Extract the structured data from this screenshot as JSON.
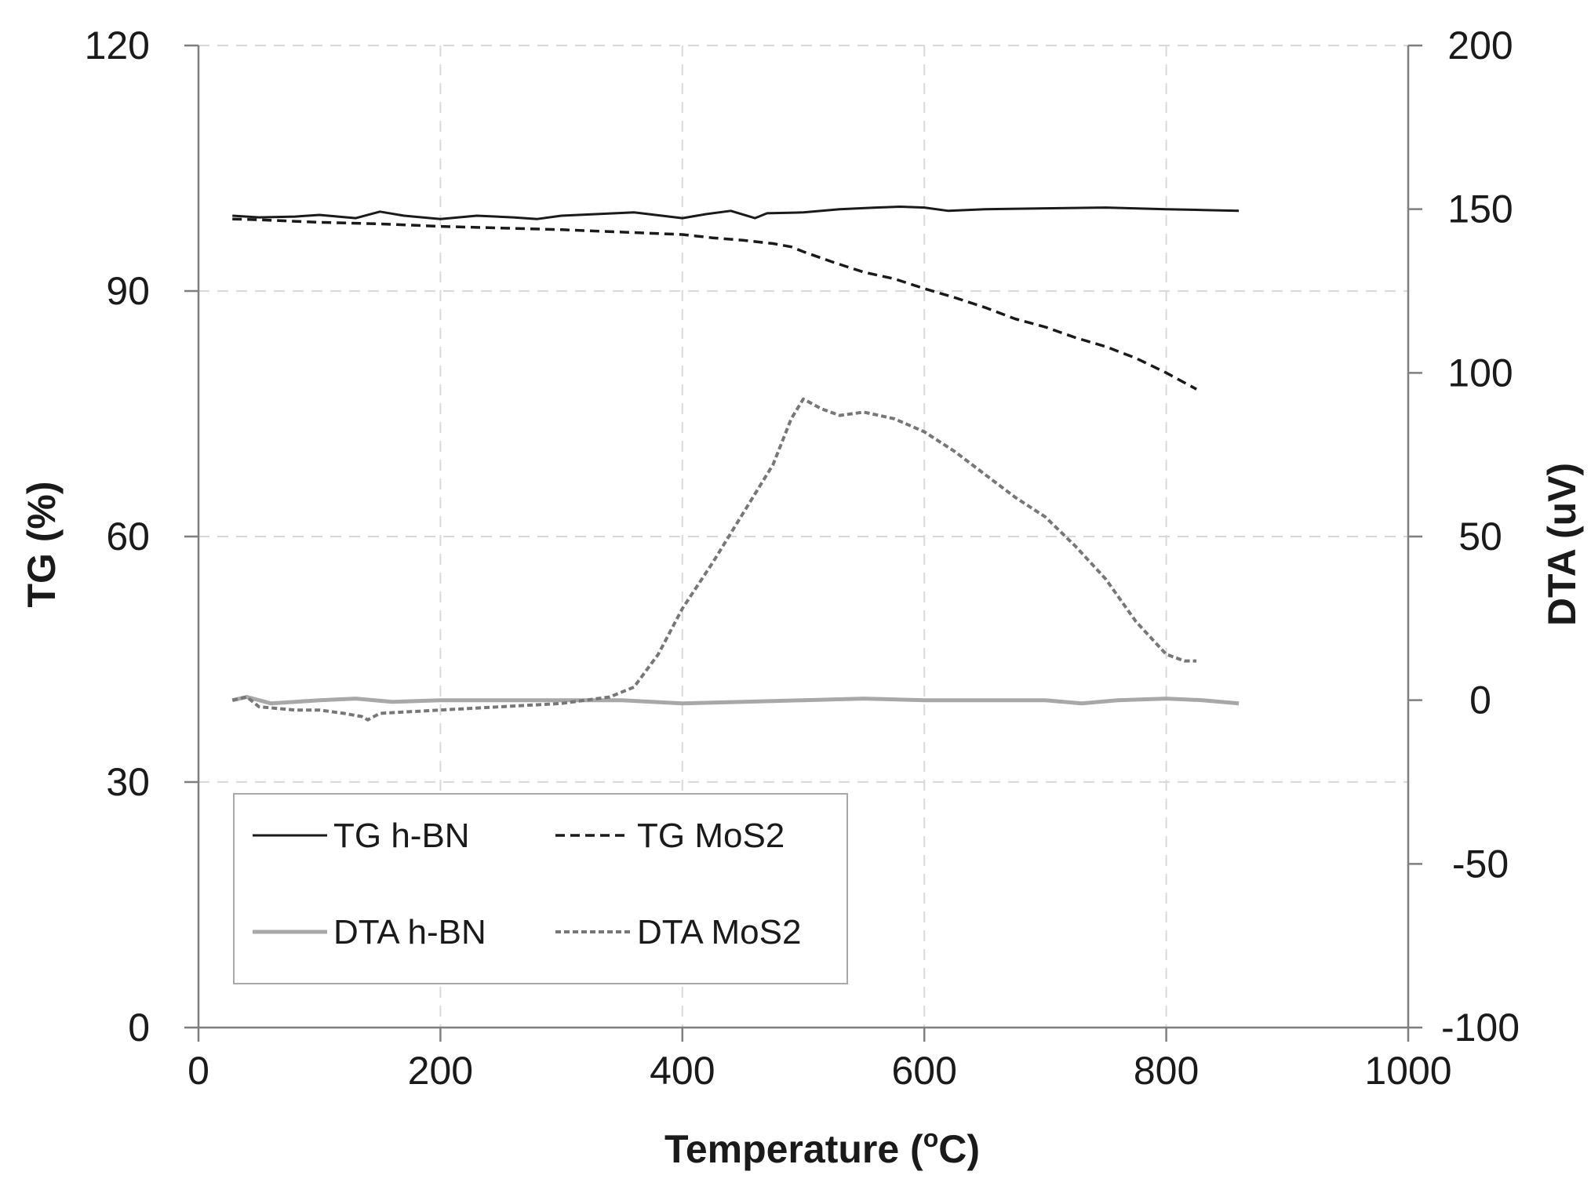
{
  "chart_data": {
    "type": "line",
    "title": "",
    "xlabel": "Temperature (",
    "xlabel_sup": "o",
    "xlabel_tail": "C)",
    "ylabel": "TG (%)",
    "y2label": "DTA (uV)",
    "xlim": [
      0,
      1000
    ],
    "ylim": [
      0,
      120
    ],
    "y2lim": [
      -100,
      200
    ],
    "x_ticks": [
      "0",
      "200",
      "400",
      "600",
      "800",
      "1000"
    ],
    "y_ticks": [
      "0",
      "30",
      "60",
      "90",
      "120"
    ],
    "y2_ticks": [
      "-100",
      "-50",
      "0",
      "50",
      "100",
      "150",
      "200"
    ],
    "grid": true,
    "legend_position": "bottom-left",
    "series": [
      {
        "name": "TG h-BN",
        "axis": "left",
        "style": "solid",
        "color": "#1a1a1a",
        "x": [
          28,
          50,
          80,
          100,
          130,
          150,
          170,
          200,
          230,
          260,
          280,
          300,
          330,
          360,
          400,
          420,
          440,
          460,
          470,
          500,
          530,
          560,
          580,
          600,
          620,
          650,
          700,
          750,
          800,
          830,
          860
        ],
        "y": [
          99.2,
          99.0,
          99.1,
          99.3,
          98.9,
          99.7,
          99.2,
          98.8,
          99.2,
          99.0,
          98.8,
          99.2,
          99.4,
          99.6,
          98.9,
          99.4,
          99.8,
          98.9,
          99.5,
          99.6,
          100.0,
          100.2,
          100.3,
          100.2,
          99.8,
          100.0,
          100.1,
          100.2,
          100.0,
          99.9,
          99.8
        ]
      },
      {
        "name": "TG MoS2",
        "axis": "left",
        "style": "dashed",
        "color": "#1a1a1a",
        "x": [
          28,
          50,
          100,
          150,
          200,
          250,
          300,
          350,
          400,
          425,
          450,
          475,
          490,
          500,
          525,
          550,
          575,
          600,
          625,
          650,
          675,
          700,
          725,
          750,
          775,
          800,
          825
        ],
        "y": [
          98.8,
          98.7,
          98.4,
          98.2,
          97.9,
          97.7,
          97.5,
          97.2,
          96.9,
          96.5,
          96.2,
          95.8,
          95.4,
          94.8,
          93.5,
          92.3,
          91.5,
          90.3,
          89.2,
          88.0,
          86.6,
          85.6,
          84.3,
          83.2,
          81.8,
          80.0,
          78.0
        ]
      },
      {
        "name": "DTA h-BN",
        "axis": "right",
        "style": "thick",
        "color": "#a8a8a8",
        "x": [
          28,
          40,
          60,
          100,
          130,
          160,
          200,
          250,
          300,
          350,
          400,
          450,
          500,
          550,
          600,
          650,
          700,
          730,
          760,
          800,
          830,
          860
        ],
        "y": [
          0,
          1,
          -1,
          0,
          0.5,
          -0.5,
          0,
          0,
          0,
          0,
          -1,
          -0.5,
          0,
          0.5,
          0,
          0,
          0,
          -1,
          0,
          0.5,
          0,
          -1
        ]
      },
      {
        "name": "DTA MoS2",
        "axis": "right",
        "style": "dotted",
        "color": "#777777",
        "x": [
          28,
          40,
          50,
          80,
          100,
          120,
          135,
          140,
          150,
          200,
          250,
          300,
          340,
          360,
          380,
          400,
          425,
          450,
          475,
          490,
          500,
          515,
          530,
          550,
          575,
          600,
          625,
          650,
          675,
          700,
          725,
          750,
          775,
          800,
          815,
          825
        ],
        "y": [
          0,
          1,
          -2,
          -3,
          -3,
          -4,
          -5,
          -6,
          -4,
          -3,
          -2,
          -1,
          1,
          4,
          14,
          28,
          42,
          57,
          72,
          86,
          92,
          89,
          87,
          88,
          86,
          82,
          76,
          69,
          62,
          56,
          47,
          37,
          24,
          14,
          12,
          12
        ]
      }
    ]
  }
}
